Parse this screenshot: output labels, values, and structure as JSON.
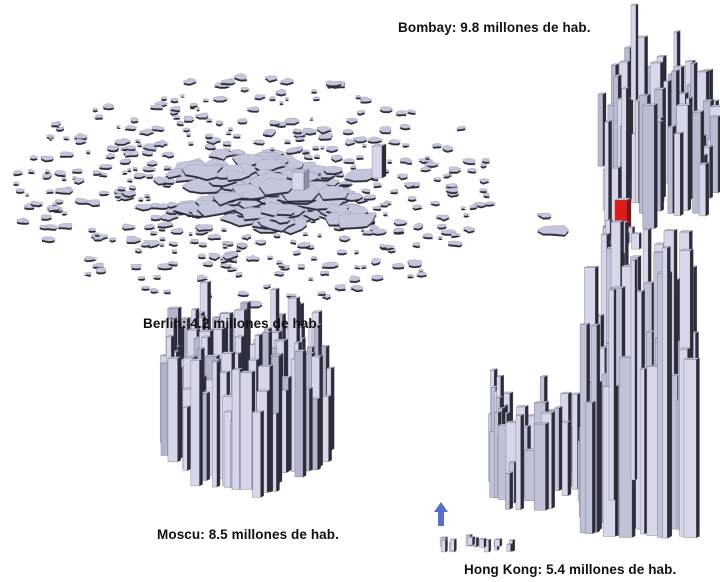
{
  "labels": {
    "bombay": "Bombay: 9.8 millones de hab.",
    "berlin": "Berlin: 4.2 millones de hab.",
    "moscu": "Moscu: 8.5 millones de hab.",
    "hongkong": "Hong Kong: 5.4 millones de hab."
  },
  "colors": {
    "face_light": "#d6d7e8",
    "face_top": "#c4c6dc",
    "face_dark": "#2b2d3a",
    "face_mid": "#8e90a6",
    "highlight": "#e01b1b",
    "marker": "#5a6fc8"
  }
}
